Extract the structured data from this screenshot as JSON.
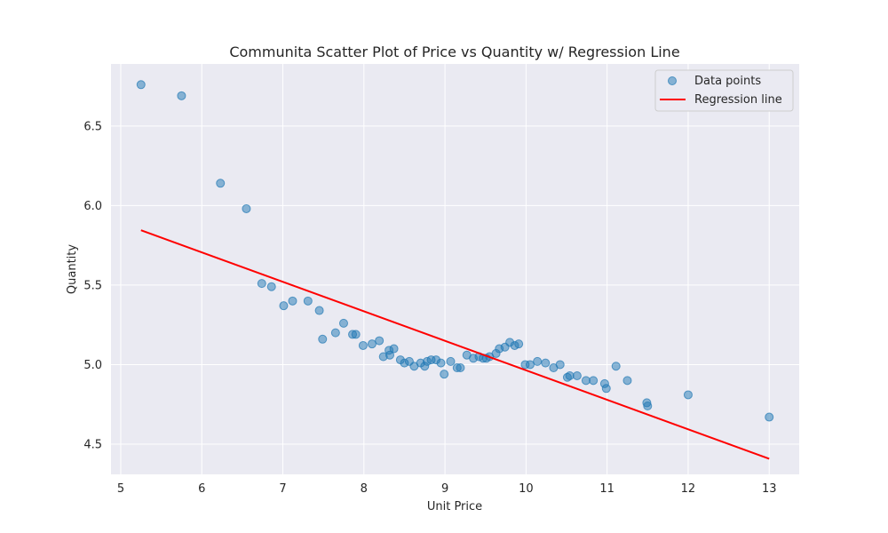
{
  "chart_data": {
    "type": "scatter",
    "title": "Communita Scatter Plot of Price vs Quantity w/ Regression Line",
    "xlabel": "Unit Price",
    "ylabel": "Quantity",
    "xlim": [
      4.88,
      13.37
    ],
    "ylim": [
      4.31,
      6.89
    ],
    "xticks": [
      5,
      6,
      7,
      8,
      9,
      10,
      11,
      12,
      13
    ],
    "yticks": [
      4.5,
      5.0,
      5.5,
      6.0,
      6.5
    ],
    "xtick_labels": [
      "5",
      "6",
      "7",
      "8",
      "9",
      "10",
      "11",
      "12",
      "13"
    ],
    "ytick_labels": [
      "4.5",
      "5.0",
      "5.5",
      "6.0",
      "6.5"
    ],
    "grid": true,
    "legend_position": "top-right",
    "series": [
      {
        "name": "Data points",
        "kind": "scatter",
        "color": "#1f77b4",
        "points": [
          [
            5.25,
            6.76
          ],
          [
            5.75,
            6.69
          ],
          [
            6.23,
            6.14
          ],
          [
            6.55,
            5.98
          ],
          [
            6.74,
            5.51
          ],
          [
            6.86,
            5.49
          ],
          [
            7.01,
            5.37
          ],
          [
            7.12,
            5.4
          ],
          [
            7.31,
            5.4
          ],
          [
            7.45,
            5.34
          ],
          [
            7.49,
            5.16
          ],
          [
            7.65,
            5.2
          ],
          [
            7.75,
            5.26
          ],
          [
            7.86,
            5.19
          ],
          [
            7.9,
            5.19
          ],
          [
            7.99,
            5.12
          ],
          [
            8.1,
            5.13
          ],
          [
            8.19,
            5.15
          ],
          [
            8.24,
            5.05
          ],
          [
            8.31,
            5.09
          ],
          [
            8.32,
            5.06
          ],
          [
            8.37,
            5.1
          ],
          [
            8.45,
            5.03
          ],
          [
            8.5,
            5.01
          ],
          [
            8.56,
            5.02
          ],
          [
            8.62,
            4.99
          ],
          [
            8.7,
            5.01
          ],
          [
            8.75,
            4.99
          ],
          [
            8.78,
            5.02
          ],
          [
            8.83,
            5.03
          ],
          [
            8.89,
            5.03
          ],
          [
            8.95,
            5.01
          ],
          [
            8.99,
            4.94
          ],
          [
            9.07,
            5.02
          ],
          [
            9.15,
            4.98
          ],
          [
            9.19,
            4.98
          ],
          [
            9.27,
            5.06
          ],
          [
            9.35,
            5.04
          ],
          [
            9.42,
            5.05
          ],
          [
            9.47,
            5.04
          ],
          [
            9.51,
            5.04
          ],
          [
            9.55,
            5.05
          ],
          [
            9.63,
            5.07
          ],
          [
            9.67,
            5.1
          ],
          [
            9.74,
            5.11
          ],
          [
            9.8,
            5.14
          ],
          [
            9.86,
            5.12
          ],
          [
            9.91,
            5.13
          ],
          [
            9.99,
            5.0
          ],
          [
            10.05,
            5.0
          ],
          [
            10.14,
            5.02
          ],
          [
            10.24,
            5.01
          ],
          [
            10.34,
            4.98
          ],
          [
            10.42,
            5.0
          ],
          [
            10.51,
            4.92
          ],
          [
            10.54,
            4.93
          ],
          [
            10.63,
            4.93
          ],
          [
            10.74,
            4.9
          ],
          [
            10.83,
            4.9
          ],
          [
            10.97,
            4.88
          ],
          [
            10.99,
            4.85
          ],
          [
            11.11,
            4.99
          ],
          [
            11.25,
            4.9
          ],
          [
            11.49,
            4.76
          ],
          [
            11.5,
            4.74
          ],
          [
            12.0,
            4.81
          ],
          [
            13.0,
            4.67
          ]
        ]
      },
      {
        "name": "Regression line",
        "kind": "line",
        "color": "#ff0000",
        "points": [
          [
            5.25,
            5.845
          ],
          [
            13.0,
            4.408
          ]
        ]
      }
    ]
  }
}
